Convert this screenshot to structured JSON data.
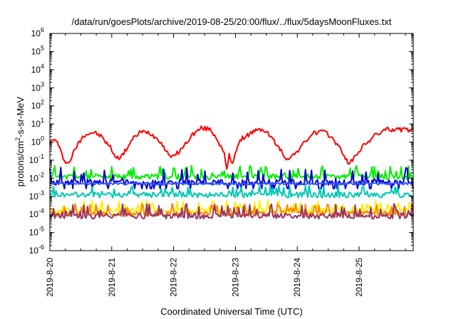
{
  "chart_data": {
    "type": "line",
    "title": "/data/run/goesPlots/archive/2019-08-25/20:00/flux/../flux/5daysMoonFluxes.txt",
    "xlabel": "Coordinated Universal Time (UTC)",
    "ylabel_parts": [
      "protons/cm",
      "2",
      "-s-sr-MeV"
    ],
    "y_scale": "log",
    "ylim": [
      1e-06,
      1000000.0
    ],
    "y_ticks": [
      {
        "base": "10",
        "exp": "-6"
      },
      {
        "base": "10",
        "exp": "-5"
      },
      {
        "base": "10",
        "exp": "-4"
      },
      {
        "base": "10",
        "exp": "-3"
      },
      {
        "base": "10",
        "exp": "-2"
      },
      {
        "base": "10",
        "exp": "-1"
      },
      {
        "base": "10",
        "exp": "0"
      },
      {
        "base": "10",
        "exp": "1"
      },
      {
        "base": "10",
        "exp": "2"
      },
      {
        "base": "10",
        "exp": "3"
      },
      {
        "base": "10",
        "exp": "4"
      },
      {
        "base": "10",
        "exp": "5"
      },
      {
        "base": "10",
        "exp": "6"
      }
    ],
    "x_range_days": [
      "2019-08-20",
      "2019-08-25T21:00"
    ],
    "x_ticks": [
      "2019-8-20",
      "2019-8-21",
      "2019-8-22",
      "2019-8-23",
      "2019-8-24",
      "2019-8-25"
    ],
    "grid": false,
    "series": [
      {
        "color": "#ff0000",
        "kind": "red",
        "anchors": [
          [
            0.0,
            1.0
          ],
          [
            0.1,
            1.4
          ],
          [
            0.22,
            0.12
          ],
          [
            0.3,
            0.06
          ],
          [
            0.42,
            0.5
          ],
          [
            0.55,
            2.5
          ],
          [
            0.7,
            3.5
          ],
          [
            0.82,
            2.2
          ],
          [
            0.98,
            0.5
          ],
          [
            1.08,
            0.12
          ],
          [
            1.18,
            0.2
          ],
          [
            1.32,
            1.2
          ],
          [
            1.45,
            3.5
          ],
          [
            1.6,
            3.5
          ],
          [
            1.78,
            1.2
          ],
          [
            1.9,
            0.25
          ],
          [
            2.0,
            0.15
          ],
          [
            2.15,
            0.5
          ],
          [
            2.3,
            2.5
          ],
          [
            2.45,
            6
          ],
          [
            2.6,
            5
          ],
          [
            2.72,
            1.2
          ],
          [
            2.82,
            0.2
          ],
          [
            2.86,
            0.03
          ],
          [
            2.9,
            0.2
          ],
          [
            2.95,
            0.06
          ],
          [
            3.0,
            0.3
          ],
          [
            3.1,
            1.5
          ],
          [
            3.3,
            4
          ],
          [
            3.45,
            5
          ],
          [
            3.55,
            2.5
          ],
          [
            3.7,
            0.5
          ],
          [
            3.82,
            0.12
          ],
          [
            3.95,
            0.2
          ],
          [
            4.1,
            0.8
          ],
          [
            4.25,
            3
          ],
          [
            4.4,
            4
          ],
          [
            4.55,
            2
          ],
          [
            4.68,
            0.5
          ],
          [
            4.8,
            0.1
          ],
          [
            4.85,
            0.06
          ],
          [
            4.95,
            0.2
          ],
          [
            5.1,
            0.8
          ],
          [
            5.3,
            3
          ],
          [
            5.45,
            5
          ],
          [
            5.6,
            5
          ],
          [
            5.85,
            4.5
          ]
        ]
      },
      {
        "color": "#00ee00",
        "kind": "spiky",
        "base": 0.012,
        "spike": 0.05,
        "seed": 11
      },
      {
        "color": "#0000cc",
        "kind": "spiky_down",
        "base": 0.006,
        "spike": 0.04,
        "seed": 23
      },
      {
        "color": "#3355ff",
        "kind": "flat",
        "base": 0.005,
        "seed": 37
      },
      {
        "color": "#00c8b4",
        "kind": "spiky",
        "base": 0.0012,
        "spike": 0.004,
        "seed": 41
      },
      {
        "color": "#ffee00",
        "kind": "spiky",
        "base": 0.00016,
        "spike": 0.0006,
        "seed": 53
      },
      {
        "color": "#ff8800",
        "kind": "spiky",
        "base": 0.00011,
        "spike": 0.0004,
        "seed": 67
      },
      {
        "color": "#993366",
        "kind": "spiky",
        "base": 8e-05,
        "spike": 0.0004,
        "seed": 79
      }
    ]
  }
}
